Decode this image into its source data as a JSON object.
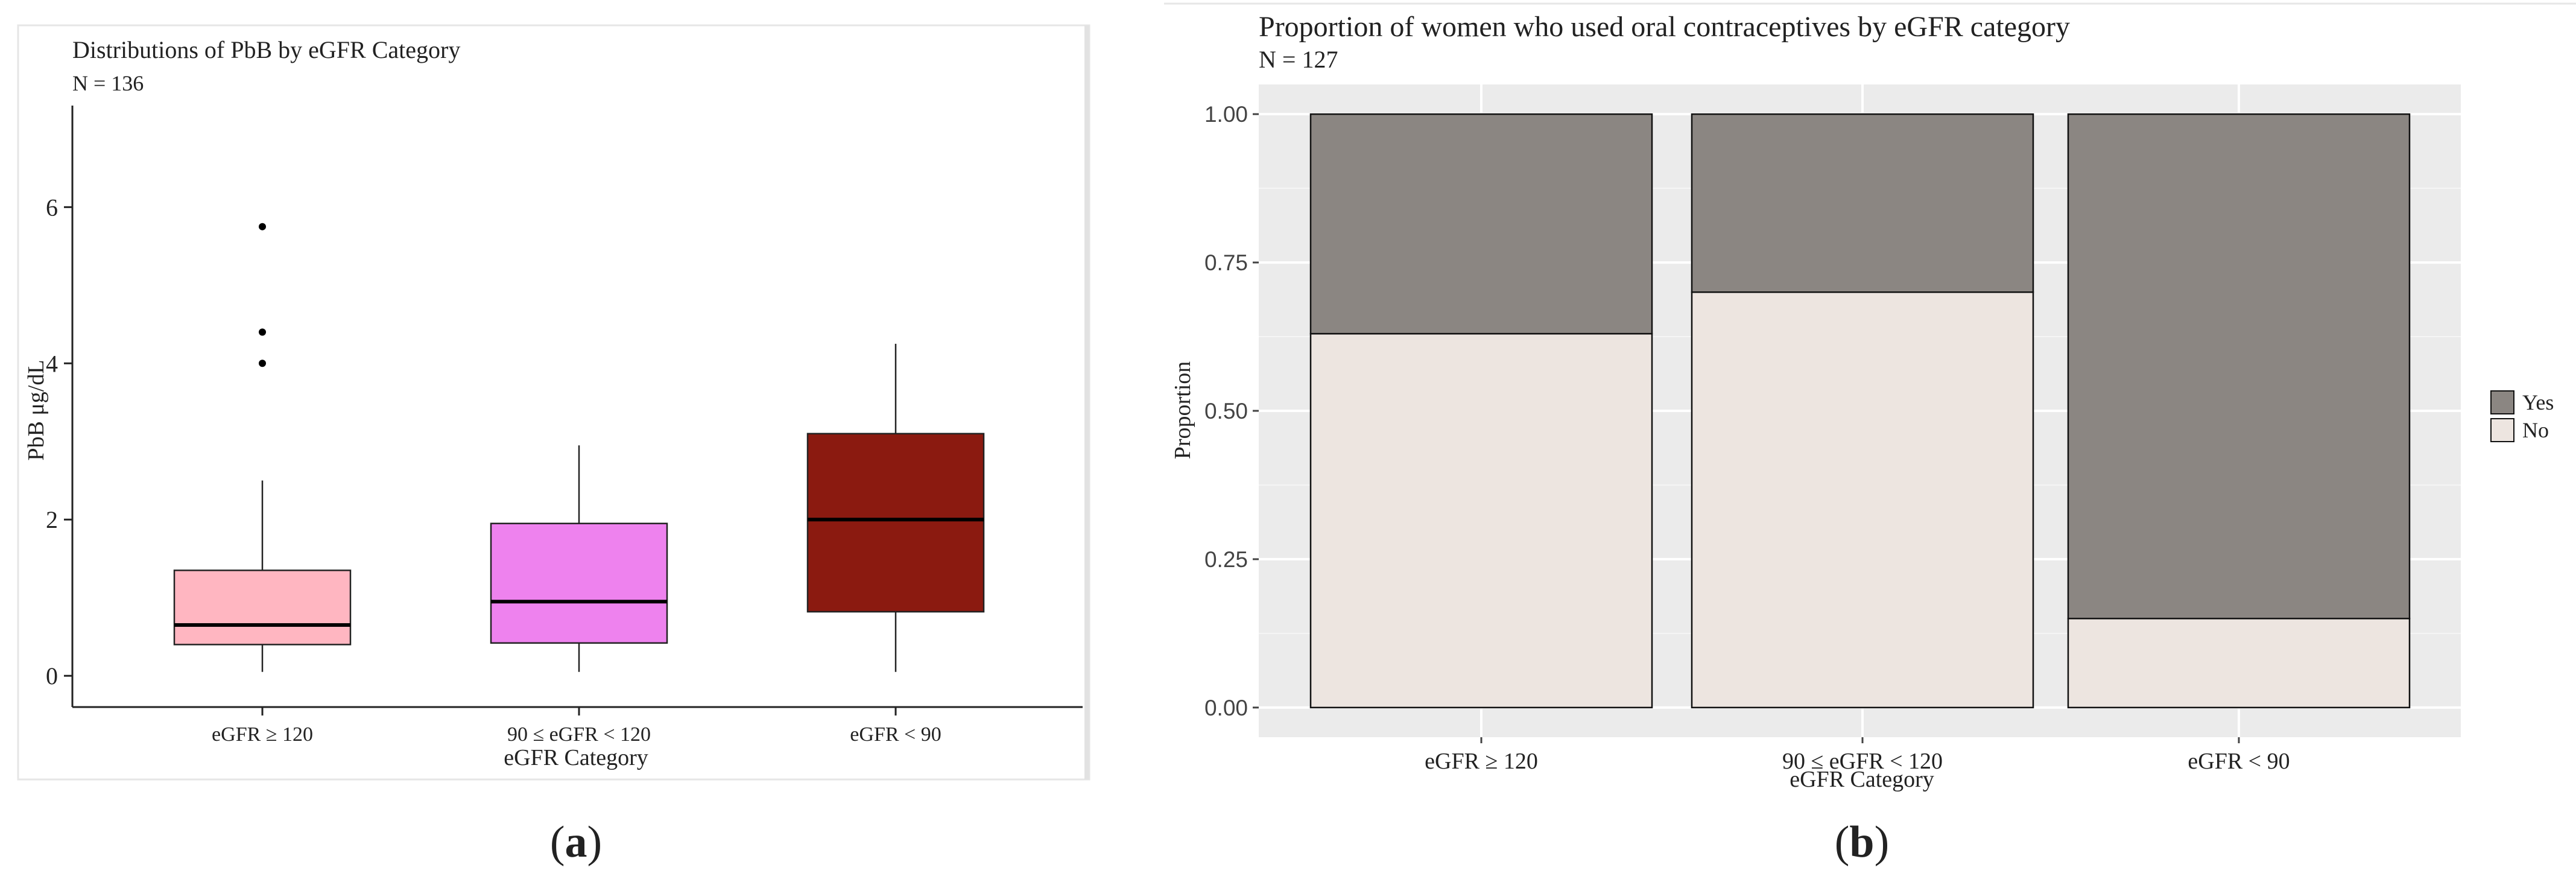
{
  "chart_data": [
    {
      "type": "box",
      "panel_label": "(a)",
      "panel_letter": "a",
      "title": "Distributions of PbB by eGFR Category",
      "subtitle": "N = 136",
      "xlabel": "eGFR Category",
      "ylabel": "PbB μg/dL",
      "ylim": [
        -0.4,
        7.3
      ],
      "yticks": [
        0,
        2,
        4,
        6
      ],
      "ytick_labels": [
        "0",
        "2",
        "4",
        "6"
      ],
      "categories": [
        "eGFR ≥ 120",
        "90 ≤ eGFR < 120",
        "eGFR < 90"
      ],
      "boxes": [
        {
          "category": "eGFR ≥ 120",
          "whisker_low": 0.05,
          "q1": 0.4,
          "median": 0.65,
          "q3": 1.35,
          "whisker_high": 2.5,
          "outliers": [
            4.0,
            4.4,
            5.75
          ],
          "color": "#FFB6C1"
        },
        {
          "category": "90 ≤ eGFR < 120",
          "whisker_low": 0.05,
          "q1": 0.42,
          "median": 0.95,
          "q3": 1.95,
          "whisker_high": 2.95,
          "outliers": [],
          "color": "#EE82EE"
        },
        {
          "category": "eGFR < 90",
          "whisker_low": 0.05,
          "q1": 0.82,
          "median": 2.0,
          "q3": 3.1,
          "whisker_high": 4.25,
          "outliers": [],
          "color": "#8B1A10"
        }
      ]
    },
    {
      "type": "stacked-bar",
      "panel_label": "(b)",
      "panel_letter": "b",
      "title": "Proportion of women who used oral contraceptives by eGFR category",
      "subtitle": "N = 127",
      "xlabel": "eGFR Category",
      "ylabel": "Proportion",
      "ylim": [
        -0.05,
        1.05
      ],
      "yticks": [
        0,
        0.25,
        0.5,
        0.75,
        1.0
      ],
      "ytick_labels": [
        "0.00",
        "0.25",
        "0.50",
        "0.75",
        "1.00"
      ],
      "categories": [
        "eGFR ≥ 120",
        "90 ≤ eGFR < 120",
        "eGFR < 90"
      ],
      "series": [
        {
          "name": "No",
          "values": [
            0.63,
            0.7,
            0.15
          ],
          "color": "#EDE5E0"
        },
        {
          "name": "Yes",
          "values": [
            0.37,
            0.3,
            0.85
          ],
          "color": "#8B8682"
        }
      ],
      "legend": {
        "entries": [
          "Yes",
          "No"
        ],
        "position": "right"
      },
      "background": "#EBEBEB"
    }
  ]
}
